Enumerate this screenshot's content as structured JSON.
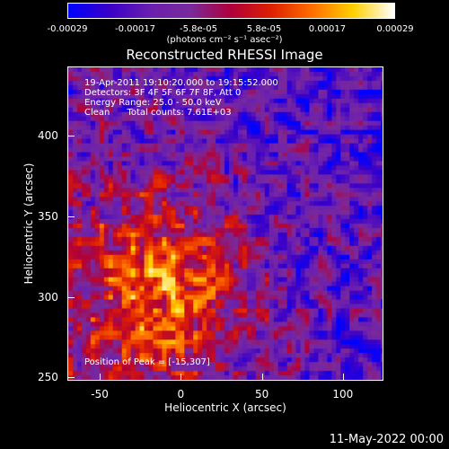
{
  "chart_data": {
    "type": "heatmap",
    "title": "Reconstructed RHESSI Image",
    "xlabel": "Heliocentric X (arcsec)",
    "ylabel": "Heliocentric Y (arcsec)",
    "xlim": [
      -70,
      125
    ],
    "ylim": [
      248,
      443
    ],
    "x_ticks": [
      "-50",
      "0",
      "50",
      "100"
    ],
    "y_ticks": [
      "250",
      "300",
      "350",
      "400"
    ],
    "x_tick_values": [
      -50,
      0,
      50,
      100
    ],
    "y_tick_values": [
      250,
      300,
      350,
      400
    ],
    "colorbar": {
      "min": -0.00029,
      "max": 0.00029,
      "tick_labels": [
        "-0.00029",
        "-0.00017",
        "-5.8e-05",
        "5.8e-05",
        "0.00017",
        "0.00029"
      ],
      "tick_values": [
        -0.00029,
        -0.00017,
        -5.8e-05,
        5.8e-05,
        0.00017,
        0.00029
      ],
      "unit": "(photons cm⁻² s⁻¹ asec⁻²)",
      "colormap": [
        "#0000ff",
        "#3a00c8",
        "#6a1fb0",
        "#7a2a9a",
        "#b0003a",
        "#e02000",
        "#ff7000",
        "#ffd000",
        "#ffffff"
      ]
    },
    "annotations": {
      "line1": "19-Apr-2011 19:10:20.000 to 19:15:52.000",
      "line2": "Detectors: 3F 4F 5F 6F 7F 8F, Att 0",
      "line3": "Energy Range: 25.0 - 50.0 keV",
      "line4": "Clean      Total counts: 7.61E+03",
      "peak": "Position of Peak = [-15,307]"
    },
    "peak_position": [
      -15,
      307
    ]
  },
  "footer": {
    "date": "11-May-2022 00:00"
  }
}
